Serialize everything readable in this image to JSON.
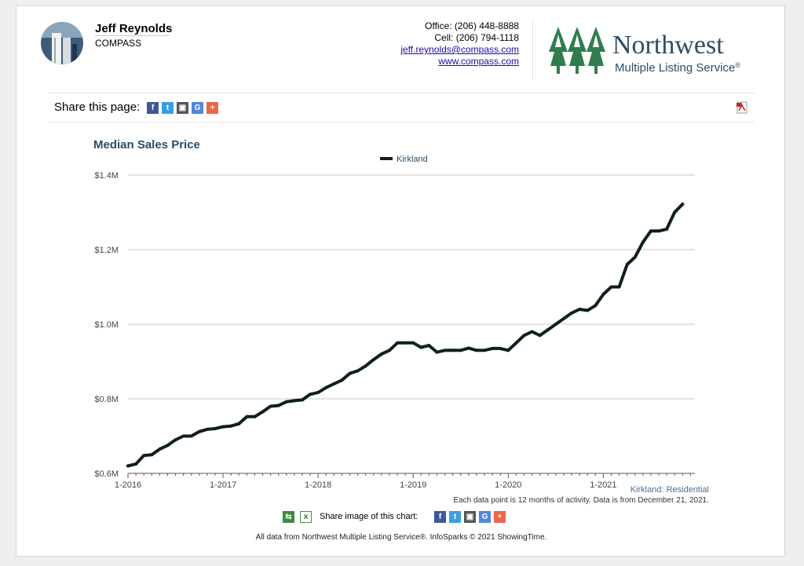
{
  "agent": {
    "name": "Jeff Reynolds",
    "company": "COMPASS",
    "office": "Office: (206) 448-8888",
    "cell": "Cell: (206) 794-1118",
    "email": "jeff.reynolds@compass.com",
    "website": "www.compass.com"
  },
  "brand": {
    "name": "Northwest",
    "subtitle": "Multiple Listing Service",
    "registered_mark": "®",
    "color": "#2e7d4f"
  },
  "share_page": {
    "label": "Share this page:",
    "icons": [
      "facebook-icon",
      "twitter-icon",
      "print-icon",
      "google-icon",
      "add-icon"
    ]
  },
  "chart_data": {
    "type": "line",
    "title": "Median Sales Price",
    "xlabel": "",
    "ylabel": "",
    "ylim": [
      600000,
      1400000
    ],
    "yticks": [
      600000,
      800000,
      1000000,
      1200000,
      1400000
    ],
    "ytick_labels": [
      "$0.6M",
      "$0.8M",
      "$1.0M",
      "$1.2M",
      "$1.4M"
    ],
    "xticks": [
      "1-2016",
      "1-2017",
      "1-2018",
      "1-2019",
      "1-2020",
      "1-2021"
    ],
    "legend_position": "top-center",
    "grid": true,
    "line_color": "#0f1f1f",
    "series": [
      {
        "name": "Kirkland",
        "start_month": "1-2016",
        "values": [
          620000,
          625000,
          648000,
          650000,
          665000,
          675000,
          690000,
          700000,
          700000,
          712000,
          718000,
          720000,
          725000,
          727000,
          733000,
          752000,
          752000,
          765000,
          780000,
          782000,
          792000,
          795000,
          797000,
          812000,
          817000,
          830000,
          840000,
          850000,
          868000,
          875000,
          888000,
          905000,
          920000,
          930000,
          950000,
          950000,
          950000,
          938000,
          943000,
          925000,
          930000,
          930000,
          930000,
          936000,
          930000,
          930000,
          935000,
          935000,
          930000,
          950000,
          970000,
          980000,
          970000,
          985000,
          1000000,
          1015000,
          1030000,
          1040000,
          1037000,
          1050000,
          1080000,
          1100000,
          1100000,
          1160000,
          1180000,
          1220000,
          1250000,
          1250000,
          1255000,
          1300000,
          1322000
        ]
      }
    ]
  },
  "footer": {
    "series_label": "Kirkland: Residential",
    "note": "Each data point is 12 months of activity. Data is from December 21, 2021.",
    "share_chart_label": "Share image of this chart:",
    "credits": "All data from Northwest Multiple Listing Service®. InfoSparks © 2021 ShowingTime."
  }
}
